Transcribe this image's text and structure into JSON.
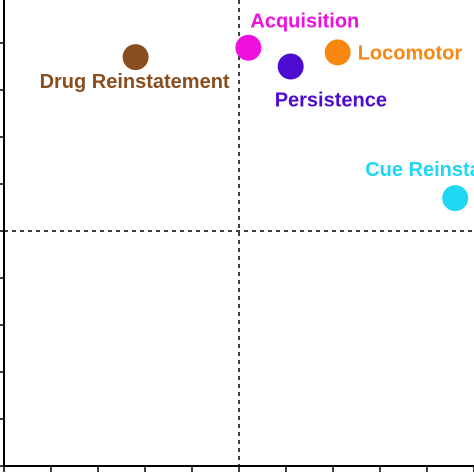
{
  "chart_data": {
    "type": "scatter",
    "title": "",
    "xlabel": "",
    "ylabel": "",
    "grid": false,
    "xlim": [
      -5,
      5
    ],
    "ylim": [
      -5,
      5
    ],
    "reference_lines": {
      "x": 0,
      "y": 0,
      "style": "dashed"
    },
    "points": [
      {
        "label": "Acquisition",
        "x": 0.2,
        "y": 3.9,
        "color": "#ee10dc",
        "label_pos": "above-right"
      },
      {
        "label": "Locomotor",
        "x": 2.1,
        "y": 3.8,
        "color": "#f7870f",
        "label_pos": "right"
      },
      {
        "label": "Persistence",
        "x": 1.1,
        "y": 3.5,
        "color": "#4c0bd0",
        "label_pos": "below"
      },
      {
        "label": "Drug Reinstatement",
        "x": -2.2,
        "y": 3.7,
        "color": "#8a4e1e",
        "label_pos": "below-left"
      },
      {
        "label": "Cue Reinstatement",
        "x": 4.6,
        "y": 0.7,
        "color": "#1fd6f3",
        "label_pos": "above-left"
      }
    ]
  }
}
